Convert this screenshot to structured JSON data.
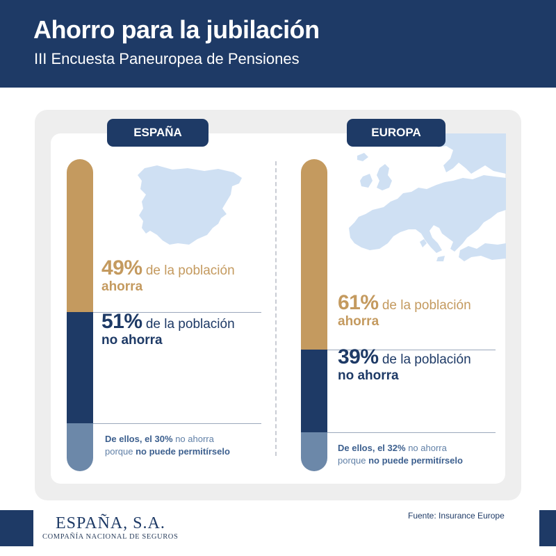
{
  "header": {
    "title": "Ahorro para la jubilación",
    "subtitle": "III Encuesta Paneuropea de Pensiones"
  },
  "colors": {
    "navy": "#1e3a66",
    "gold": "#c49a5f",
    "steel": "#6c88a9",
    "map": "#cfe0f3"
  },
  "chart_data": [
    {
      "type": "bar",
      "label": "ESPAÑA",
      "series": [
        {
          "name": "ahorra",
          "value": 49,
          "text_value": "49%",
          "text": "de la población",
          "strong": "ahorra"
        },
        {
          "name": "no ahorra",
          "value": 51,
          "text_value": "51%",
          "text": "de la población",
          "strong": "no ahorra"
        }
      ],
      "note": {
        "lead": "De ellos, el 30%",
        "mid": "no ahorra",
        "pre": "porque",
        "tail": "no puede permitírselo",
        "value": 30
      }
    },
    {
      "type": "bar",
      "label": "EUROPA",
      "series": [
        {
          "name": "ahorra",
          "value": 61,
          "text_value": "61%",
          "text": "de la población",
          "strong": "ahorra"
        },
        {
          "name": "no ahorra",
          "value": 39,
          "text_value": "39%",
          "text": "de la población",
          "strong": "no ahorra"
        }
      ],
      "note": {
        "lead": "De ellos, el 32%",
        "mid": "no ahorra",
        "pre": "porque",
        "tail": "no puede permitírselo",
        "value": 32
      }
    }
  ],
  "footer": {
    "brand": "ESPAÑA, S.A.",
    "brand_sub": "COMPAÑÍA NACIONAL DE SEGUROS",
    "source": "Fuente: Insurance Europe"
  },
  "icons": {
    "spain_map": "spain-map-icon",
    "europe_map": "europe-map-icon"
  }
}
